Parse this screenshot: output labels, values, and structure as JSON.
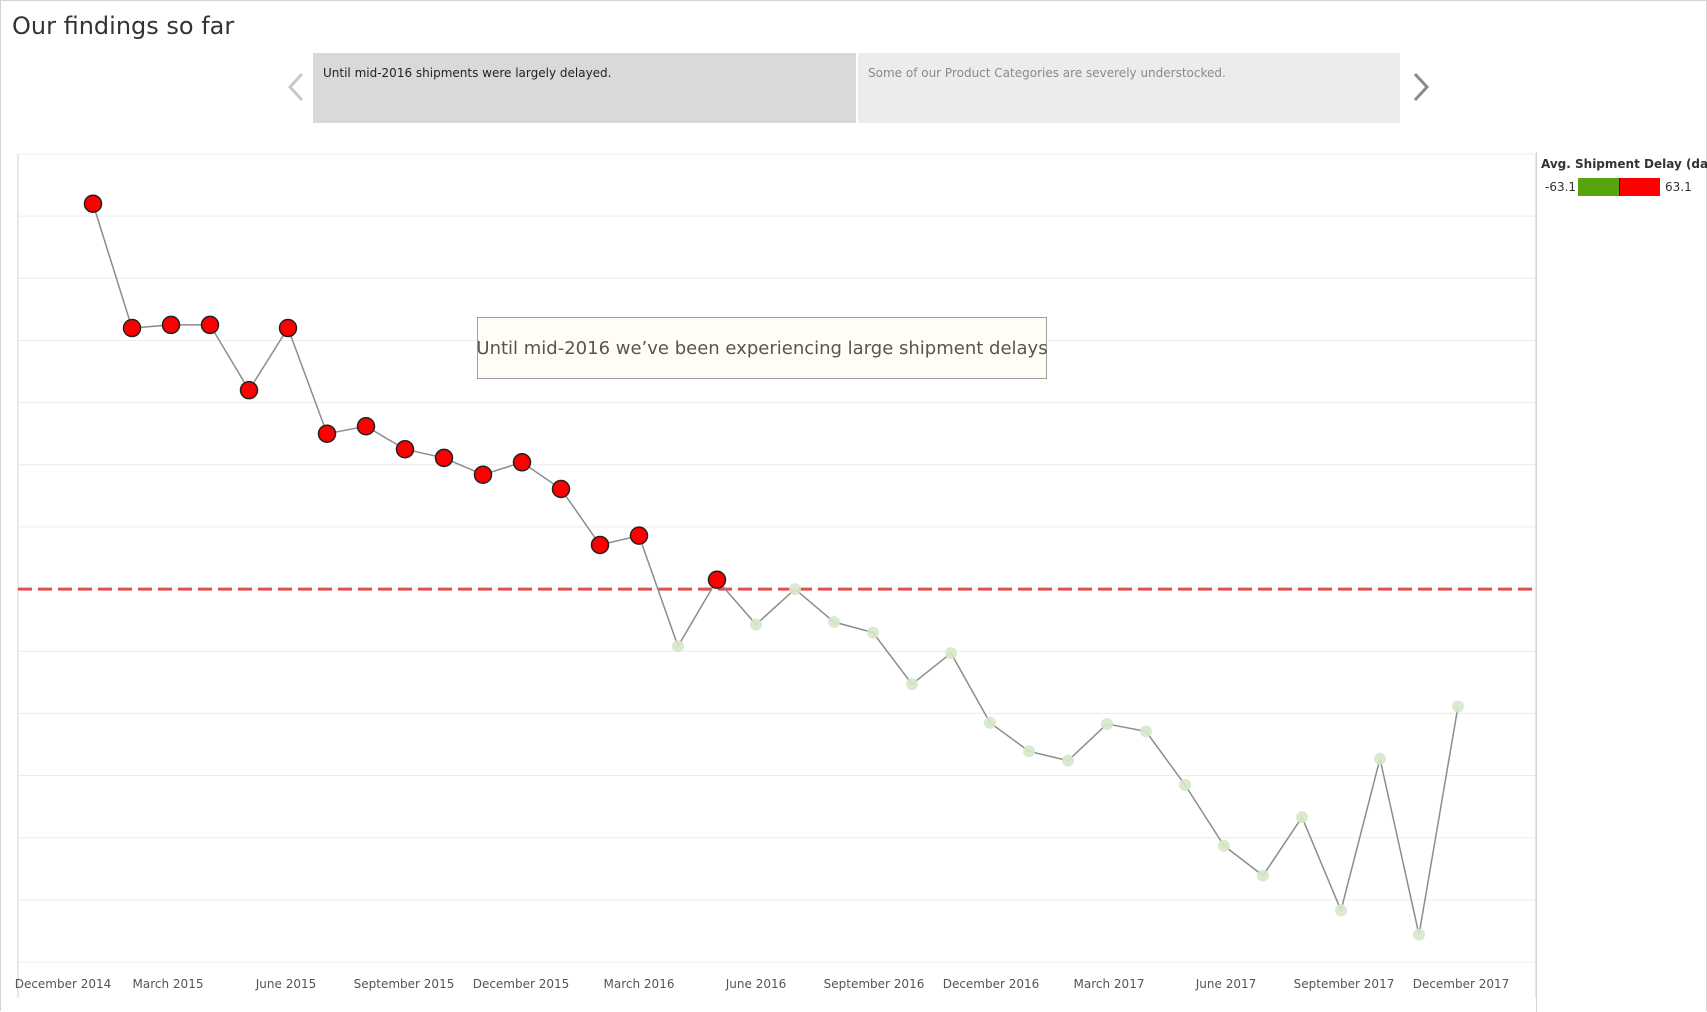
{
  "page": {
    "title": "Our findings so far"
  },
  "story": {
    "points": [
      {
        "label": "Until mid-2016 shipments were largely delayed.",
        "selected": true
      },
      {
        "label": "Some of our Product Categories are severely understocked.",
        "selected": false
      }
    ],
    "prev_icon": "chevron-left-icon",
    "next_icon": "chevron-right-icon"
  },
  "annotation": {
    "text": "Until mid-2016 we’ve been experiencing large shipment delays"
  },
  "legend": {
    "title": "Avg. Shipment Delay (day..",
    "min_label": "-63.1",
    "max_label": "63.1",
    "low_color": "#57a50e",
    "high_color": "#ff0000"
  },
  "colors": {
    "delayed_point": "#ff0000",
    "early_point": "#d6e8c9",
    "line": "#8c8c8c",
    "reference_line": "#e05050",
    "grid": "#ececec"
  },
  "chart_data": {
    "type": "line",
    "title": "",
    "xlabel": "",
    "ylabel": "",
    "x_tick_labels": [
      "December 2014",
      "March 2015",
      "June 2015",
      "September 2015",
      "December 2015",
      "March 2016",
      "June 2016",
      "September 2016",
      "December 2016",
      "March 2017",
      "June 2017",
      "September 2017",
      "December 2017"
    ],
    "x": [
      "2015-01",
      "2015-02",
      "2015-03",
      "2015-04",
      "2015-05",
      "2015-06",
      "2015-07",
      "2015-08",
      "2015-09",
      "2015-10",
      "2015-11",
      "2015-12",
      "2016-01",
      "2016-02",
      "2016-03",
      "2016-04",
      "2016-05",
      "2016-06",
      "2016-07",
      "2016-08",
      "2016-09",
      "2016-10",
      "2016-11",
      "2016-12",
      "2017-01",
      "2017-02",
      "2017-03",
      "2017-04",
      "2017-05",
      "2017-06",
      "2017-07",
      "2017-08",
      "2017-09",
      "2017-10",
      "2017-11",
      "2017-12"
    ],
    "series": [
      {
        "values": [
          62,
          42,
          42.5,
          42.5,
          32,
          42,
          25,
          26.2,
          22.5,
          21.1,
          18.4,
          20.4,
          16.1,
          7.1,
          8.6,
          -9.2,
          1.5,
          -5.7,
          0,
          -5.3,
          -7,
          -15.3,
          -10.3,
          -21.5,
          -26.1,
          -27.6,
          -21.7,
          -22.9,
          -31.5,
          -41.3,
          -46.1,
          -36.7,
          -51.7,
          -27.3,
          -55.6,
          -18.9
        ]
      }
    ],
    "reference_line": 0,
    "ylim": [
      -60,
      70
    ],
    "y_axis_labels_shown": false,
    "grid": true
  }
}
